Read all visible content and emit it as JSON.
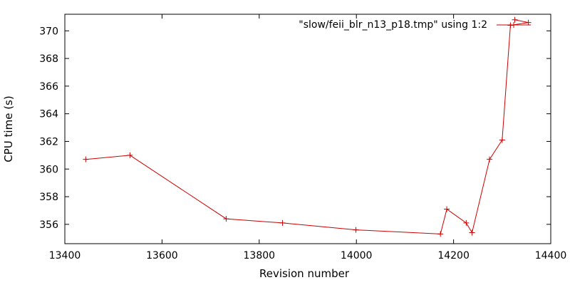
{
  "chart_data": {
    "type": "line",
    "title": "",
    "xlabel": "Revision number",
    "ylabel": "CPU time (s)",
    "xlim": [
      13400,
      14400
    ],
    "ylim": [
      354.6,
      371.2
    ],
    "x_ticks": [
      "13400",
      "13600",
      "13800",
      "14000",
      "14200",
      "14400"
    ],
    "y_ticks": [
      "356",
      "358",
      "360",
      "362",
      "364",
      "366",
      "368",
      "370"
    ],
    "grid": false,
    "legend_position": "top-right",
    "series": [
      {
        "name": "\"slow/feii_blr_n13_p18.tmp\" using 1:2",
        "color": "#cc0000",
        "marker": "plus",
        "points": [
          {
            "x": 13443,
            "y": 360.7
          },
          {
            "x": 13534,
            "y": 361.0
          },
          {
            "x": 13732,
            "y": 356.4
          },
          {
            "x": 13848,
            "y": 356.1
          },
          {
            "x": 13999,
            "y": 355.6
          },
          {
            "x": 14173,
            "y": 355.3
          },
          {
            "x": 14186,
            "y": 357.1
          },
          {
            "x": 14226,
            "y": 356.1
          },
          {
            "x": 14238,
            "y": 355.4
          },
          {
            "x": 14274,
            "y": 360.7
          },
          {
            "x": 14300,
            "y": 362.1
          },
          {
            "x": 14317,
            "y": 370.4
          },
          {
            "x": 14354,
            "y": 370.6
          },
          {
            "x": 14326,
            "y": 370.8
          }
        ]
      }
    ]
  }
}
